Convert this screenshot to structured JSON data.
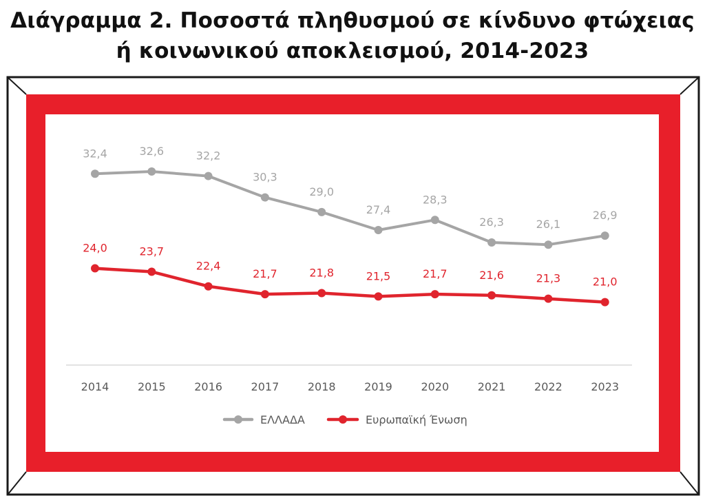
{
  "title_line1": "Διάγραμμα 2. Ποσοστά πληθυσμού σε κίνδυνο φτώχειας",
  "title_line2": "ή κοινωνικού αποκλεισμού, 2014-2023",
  "colors": {
    "frame_red": "#e81f2a",
    "greece": "#a5a5a5",
    "eu": "#e0242d",
    "axis": "#d9d9d9",
    "tick_text": "#595959"
  },
  "chart_data": {
    "type": "line",
    "title": "Διάγραμμα 2. Ποσοστά πληθυσμού σε κίνδυνο φτώχειας ή κοινωνικού αποκλεισμού, 2014-2023",
    "categories": [
      "2014",
      "2015",
      "2016",
      "2017",
      "2018",
      "2019",
      "2020",
      "2021",
      "2022",
      "2023"
    ],
    "series": [
      {
        "name": "ΕΛΛΑΔΑ",
        "values": [
          32.4,
          32.6,
          32.2,
          30.3,
          29.0,
          27.4,
          28.3,
          26.3,
          26.1,
          26.9
        ],
        "labels": [
          "32,4",
          "32,6",
          "32,2",
          "30,3",
          "29,0",
          "27,4",
          "28,3",
          "26,3",
          "26,1",
          "26,9"
        ]
      },
      {
        "name": "Ευρωπαϊκή Ένωση",
        "values": [
          24.0,
          23.7,
          22.4,
          21.7,
          21.8,
          21.5,
          21.7,
          21.6,
          21.3,
          21.0
        ],
        "labels": [
          "24,0",
          "23,7",
          "22,4",
          "21,7",
          "21,8",
          "21,5",
          "21,7",
          "21,6",
          "21,3",
          "21,0"
        ]
      }
    ],
    "legend_position": "bottom",
    "grid": false
  }
}
